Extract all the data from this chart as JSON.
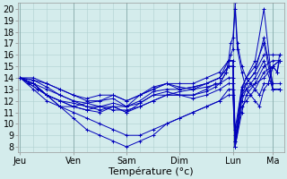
{
  "bg_color": "#d4ecec",
  "grid_color": "#b0d0d0",
  "line_color": "#0000bb",
  "xlabel": "Température (°c)",
  "xlabel_fontsize": 8,
  "yticks": [
    8,
    9,
    10,
    11,
    12,
    13,
    14,
    15,
    16,
    17,
    18,
    19,
    20
  ],
  "ylim": [
    7.5,
    20.5
  ],
  "day_labels": [
    "Jeu",
    "Ven",
    "Sam",
    "Dim",
    "Lun",
    "Ma"
  ],
  "day_positions": [
    0,
    24,
    48,
    72,
    96,
    114
  ],
  "minor_xticks": [
    0,
    6,
    12,
    18,
    24,
    30,
    36,
    42,
    48,
    54,
    60,
    66,
    72,
    78,
    84,
    90,
    96,
    102,
    108,
    114
  ],
  "xlim": [
    -1,
    119
  ],
  "tick_fontsize": 7,
  "series": [
    {
      "x": [
        0,
        6,
        12,
        18,
        24,
        30,
        36,
        42,
        48,
        54,
        60,
        66,
        72,
        78,
        84,
        90,
        94,
        96,
        97,
        100,
        102,
        106,
        110,
        114,
        117
      ],
      "y": [
        14,
        13.5,
        13,
        12.5,
        12,
        11.8,
        11.5,
        11.2,
        11.2,
        11.5,
        12,
        12.5,
        12.8,
        13,
        13.2,
        13.5,
        14,
        14,
        8,
        12,
        13,
        13.5,
        15,
        15.5,
        15.5
      ]
    },
    {
      "x": [
        0,
        6,
        12,
        18,
        24,
        30,
        36,
        42,
        48,
        54,
        60,
        66,
        72,
        78,
        84,
        90,
        94,
        96,
        97,
        100,
        102,
        106,
        110,
        114,
        117
      ],
      "y": [
        14,
        13.5,
        12.5,
        12,
        11.5,
        11.2,
        11.5,
        11.8,
        11.5,
        12,
        12.8,
        13,
        13,
        13.2,
        13.5,
        14,
        15,
        15,
        9,
        13,
        13.5,
        14.5,
        16,
        16,
        16
      ]
    },
    {
      "x": [
        0,
        6,
        12,
        18,
        24,
        30,
        36,
        42,
        48,
        54,
        60,
        66,
        72,
        78,
        84,
        90,
        94,
        96,
        97,
        100,
        102,
        106,
        110,
        114,
        117
      ],
      "y": [
        14,
        13.8,
        13.5,
        13,
        12.5,
        12,
        12,
        12.5,
        12,
        12.5,
        13,
        13.5,
        13.5,
        13.5,
        14,
        14.5,
        15.5,
        15.5,
        9.5,
        13.2,
        14,
        15,
        17,
        13,
        13
      ]
    },
    {
      "x": [
        0,
        6,
        12,
        18,
        24,
        30,
        36,
        42,
        48,
        54,
        60,
        66,
        72,
        78,
        84,
        90,
        94,
        96,
        97,
        100,
        102,
        106,
        110,
        114,
        117
      ],
      "y": [
        14,
        13.8,
        13.2,
        12.5,
        12,
        11.5,
        11.5,
        11.5,
        11.5,
        12.5,
        13,
        13.5,
        13,
        13.2,
        13.5,
        14,
        15,
        15,
        8.5,
        12.5,
        13.5,
        14.5,
        17.5,
        13.5,
        13.5
      ]
    },
    {
      "x": [
        0,
        6,
        12,
        18,
        24,
        30,
        36,
        42,
        48,
        54,
        60,
        66,
        72,
        78,
        84,
        90,
        94,
        96,
        97,
        100,
        102,
        106,
        110,
        114,
        117
      ],
      "y": [
        14,
        14,
        13.5,
        13,
        12.5,
        12.2,
        12.5,
        12.5,
        12,
        12.5,
        13.2,
        13.5,
        13.2,
        13,
        13.5,
        14,
        15.5,
        15.5,
        8,
        13,
        14,
        15.5,
        20,
        13,
        13
      ]
    },
    {
      "x": [
        0,
        4,
        8,
        12,
        18,
        24,
        30,
        36,
        42,
        48,
        54,
        60,
        66,
        72,
        78,
        84,
        88,
        90,
        93,
        94,
        95,
        96,
        97,
        98,
        100,
        102,
        104,
        106,
        108,
        110,
        112,
        114,
        116,
        117
      ],
      "y": [
        14,
        13.5,
        13,
        12.5,
        12,
        11.5,
        11.2,
        11,
        11.5,
        11,
        11.5,
        12,
        12.5,
        12.5,
        12.5,
        13,
        13.5,
        13.5,
        14.5,
        15,
        16,
        16.5,
        20.5,
        17,
        15,
        14,
        13.5,
        13,
        12.5,
        13.5,
        13.5,
        15,
        14.5,
        16
      ]
    },
    {
      "x": [
        0,
        4,
        8,
        12,
        18,
        24,
        30,
        36,
        42,
        48,
        54,
        60,
        66,
        72,
        78,
        84,
        88,
        90,
        93,
        94,
        95,
        96,
        97,
        98,
        100,
        102,
        104,
        106,
        108,
        110,
        112,
        114,
        116,
        117
      ],
      "y": [
        14,
        13.5,
        13,
        12.5,
        12,
        11.8,
        11.5,
        11.2,
        11.5,
        11,
        11.8,
        12.5,
        12.5,
        12.5,
        12.5,
        12.8,
        13.2,
        13.5,
        14.5,
        15.5,
        17,
        17.5,
        20,
        16.5,
        14.5,
        13,
        12.5,
        12,
        11.5,
        13,
        13.5,
        15,
        14.5,
        15.5
      ]
    },
    {
      "x": [
        0,
        6,
        12,
        18,
        24,
        30,
        36,
        42,
        48,
        54,
        60,
        66,
        72,
        78,
        84,
        90,
        94,
        96,
        97,
        100,
        102,
        106,
        110,
        114,
        117
      ],
      "y": [
        14,
        13,
        12,
        11.5,
        11.5,
        11.8,
        12,
        12.2,
        11.5,
        11.8,
        12.5,
        12.8,
        12.5,
        12.2,
        12.5,
        13,
        13.5,
        13.5,
        8.5,
        12.5,
        13,
        14,
        15.5,
        13,
        13
      ]
    },
    {
      "x": [
        0,
        6,
        12,
        18,
        24,
        30,
        36,
        42,
        48,
        54,
        60,
        66,
        72,
        78,
        84,
        90,
        94,
        96,
        97,
        100,
        102,
        106,
        110,
        114,
        117
      ],
      "y": [
        14,
        13.5,
        12.5,
        11.5,
        11,
        10.5,
        10,
        9.5,
        9,
        9,
        9.5,
        10,
        10.5,
        11,
        11.5,
        12,
        12.5,
        12.5,
        8,
        11.5,
        12,
        13,
        14.5,
        15,
        15.5
      ]
    },
    {
      "x": [
        0,
        6,
        12,
        18,
        24,
        30,
        36,
        42,
        48,
        54,
        60,
        66,
        72,
        78,
        84,
        90,
        94,
        96,
        97,
        100,
        102,
        106,
        110,
        114,
        117
      ],
      "y": [
        14,
        13.5,
        12.5,
        11.5,
        10.5,
        9.5,
        9,
        8.5,
        8,
        8.5,
        9,
        10,
        10.5,
        11,
        11.5,
        12,
        13,
        13,
        8,
        11,
        12.5,
        13.5,
        14,
        15,
        15.5
      ]
    }
  ]
}
